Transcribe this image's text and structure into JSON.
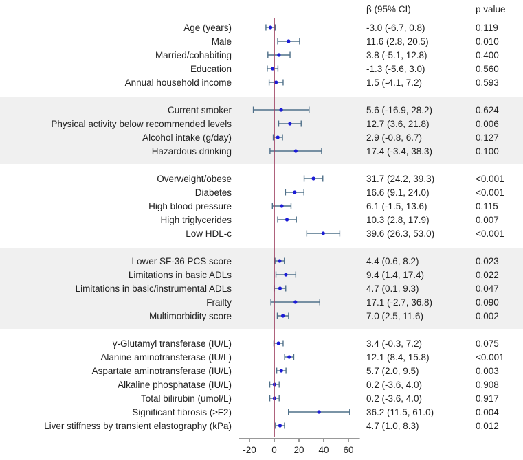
{
  "chart_data": {
    "type": "forest",
    "header_beta": "β (95% CI)",
    "header_p": "p value",
    "x_ticks": [
      "-20",
      "0",
      "20",
      "40",
      "60"
    ],
    "xlim": [
      -25,
      67
    ],
    "reference_line": 0,
    "colors": {
      "point": "#1c1cd6",
      "whisker": "#4f7089",
      "reference": "#9a3a5c",
      "band": "#f0f0f0"
    },
    "groups": [
      {
        "shaded": false,
        "rows": [
          {
            "label": "Age (years)",
            "beta": -3.0,
            "lo": -6.7,
            "hi": 0.8,
            "ci_text": "-3.0 (-6.7, 0.8)",
            "p": "0.119"
          },
          {
            "label": "Male",
            "beta": 11.6,
            "lo": 2.8,
            "hi": 20.5,
            "ci_text": "11.6 (2.8, 20.5)",
            "p": "0.010"
          },
          {
            "label": "Married/cohabiting",
            "beta": 3.8,
            "lo": -5.1,
            "hi": 12.8,
            "ci_text": "3.8 (-5.1, 12.8)",
            "p": "0.400"
          },
          {
            "label": "Education",
            "beta": -1.3,
            "lo": -5.6,
            "hi": 3.0,
            "ci_text": "-1.3 (-5.6, 3.0)",
            "p": "0.560"
          },
          {
            "label": "Annual household income",
            "beta": 1.5,
            "lo": -4.1,
            "hi": 7.2,
            "ci_text": "1.5 (-4.1, 7.2)",
            "p": "0.593"
          }
        ]
      },
      {
        "shaded": true,
        "rows": [
          {
            "label": "Current smoker",
            "beta": 5.6,
            "lo": -16.9,
            "hi": 28.2,
            "ci_text": "5.6 (-16.9, 28.2)",
            "p": "0.624"
          },
          {
            "label": "Physical activity below recommended levels",
            "beta": 12.7,
            "lo": 3.6,
            "hi": 21.8,
            "ci_text": "12.7 (3.6, 21.8)",
            "p": "0.006"
          },
          {
            "label": "Alcohol intake (g/day)",
            "beta": 2.9,
            "lo": -0.8,
            "hi": 6.7,
            "ci_text": "2.9 (-0.8, 6.7)",
            "p": "0.127"
          },
          {
            "label": "Hazardous drinking",
            "beta": 17.4,
            "lo": -3.4,
            "hi": 38.3,
            "ci_text": "17.4 (-3.4, 38.3)",
            "p": "0.100"
          }
        ]
      },
      {
        "shaded": false,
        "rows": [
          {
            "label": "Overweight/obese",
            "beta": 31.7,
            "lo": 24.2,
            "hi": 39.3,
            "ci_text": "31.7 (24.2, 39.3)",
            "p": "<0.001"
          },
          {
            "label": "Diabetes",
            "beta": 16.6,
            "lo": 9.1,
            "hi": 24.0,
            "ci_text": "16.6 (9.1, 24.0)",
            "p": "<0.001"
          },
          {
            "label": "High blood pressure",
            "beta": 6.1,
            "lo": -1.5,
            "hi": 13.6,
            "ci_text": "6.1 (-1.5, 13.6)",
            "p": "0.115"
          },
          {
            "label": "High triglycerides",
            "beta": 10.3,
            "lo": 2.8,
            "hi": 17.9,
            "ci_text": "10.3 (2.8, 17.9)",
            "p": "0.007"
          },
          {
            "label": "Low HDL-c",
            "beta": 39.6,
            "lo": 26.3,
            "hi": 53.0,
            "ci_text": "39.6 (26.3, 53.0)",
            "p": "<0.001"
          }
        ]
      },
      {
        "shaded": true,
        "rows": [
          {
            "label": "Lower SF-36 PCS score",
            "beta": 4.4,
            "lo": 0.6,
            "hi": 8.2,
            "ci_text": "4.4 (0.6, 8.2)",
            "p": "0.023"
          },
          {
            "label": "Limitations in basic ADLs",
            "beta": 9.4,
            "lo": 1.4,
            "hi": 17.4,
            "ci_text": "9.4 (1.4, 17.4)",
            "p": "0.022"
          },
          {
            "label": "Limitations in basic/instrumental ADLs",
            "beta": 4.7,
            "lo": 0.1,
            "hi": 9.3,
            "ci_text": "4.7 (0.1, 9.3)",
            "p": "0.047"
          },
          {
            "label": "Frailty",
            "beta": 17.1,
            "lo": -2.7,
            "hi": 36.8,
            "ci_text": "17.1 (-2.7, 36.8)",
            "p": "0.090"
          },
          {
            "label": "Multimorbidity score",
            "beta": 7.0,
            "lo": 2.5,
            "hi": 11.6,
            "ci_text": "7.0 (2.5, 11.6)",
            "p": "0.002"
          }
        ]
      },
      {
        "shaded": false,
        "rows": [
          {
            "label": "γ-Glutamyl transferase (IU/L)",
            "beta": 3.4,
            "lo": -0.3,
            "hi": 7.2,
            "ci_text": "3.4 (-0.3, 7.2)",
            "p": "0.075"
          },
          {
            "label": "Alanine aminotransferase (IU/L)",
            "beta": 12.1,
            "lo": 8.4,
            "hi": 15.8,
            "ci_text": "12.1 (8.4, 15.8)",
            "p": "<0.001"
          },
          {
            "label": "Aspartate aminotransferase (IU/L)",
            "beta": 5.7,
            "lo": 2.0,
            "hi": 9.5,
            "ci_text": "5.7 (2.0, 9.5)",
            "p": "0.003"
          },
          {
            "label": "Alkaline phosphatase (IU/L)",
            "beta": 0.2,
            "lo": -3.6,
            "hi": 4.0,
            "ci_text": "0.2 (-3.6, 4.0)",
            "p": "0.908"
          },
          {
            "label": "Total bilirubin (umol/L)",
            "beta": 0.2,
            "lo": -3.6,
            "hi": 4.0,
            "ci_text": "0.2 (-3.6, 4.0)",
            "p": "0.917"
          },
          {
            "label": "Significant fibrosis (≥F2)",
            "beta": 36.2,
            "lo": 11.5,
            "hi": 61.0,
            "ci_text": "36.2 (11.5, 61.0)",
            "p": "0.004"
          },
          {
            "label": "Liver stiffness by transient elastography (kPa)",
            "beta": 4.7,
            "lo": 1.0,
            "hi": 8.3,
            "ci_text": "4.7 (1.0, 8.3)",
            "p": "0.012"
          }
        ]
      }
    ]
  }
}
